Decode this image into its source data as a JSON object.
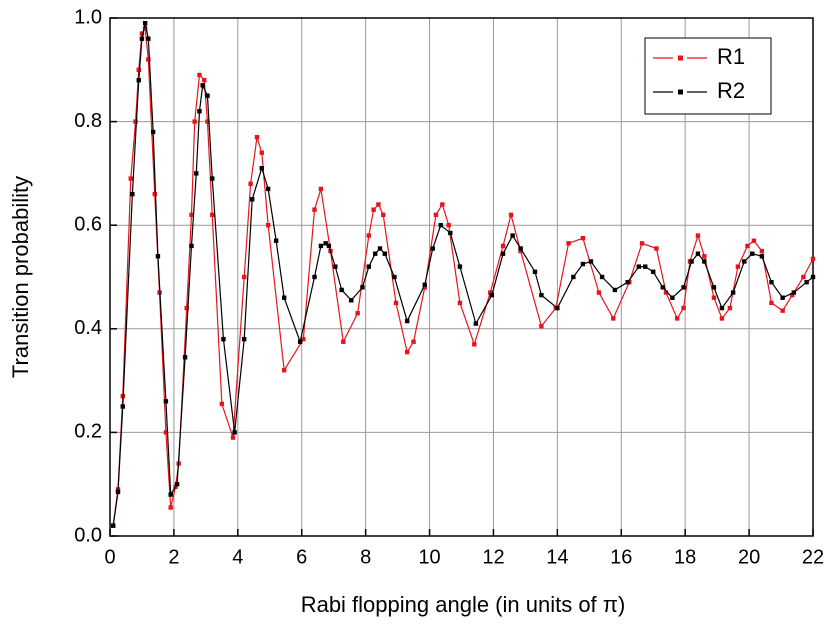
{
  "chart_data": {
    "type": "line",
    "x_label": "Rabi flopping angle (in units of π)",
    "y_label": "Transition probability",
    "xlim": [
      0,
      22
    ],
    "xticks": [
      0,
      2,
      4,
      6,
      8,
      10,
      12,
      14,
      16,
      18,
      20,
      22
    ],
    "ylim": [
      0,
      1
    ],
    "yticks": [
      {
        "value": 0,
        "label": "0.0"
      },
      0.2,
      0.4,
      0.6,
      0.8,
      {
        "value": 1,
        "label": "1.0"
      }
    ],
    "grid": true,
    "legend": "top-right",
    "series": [
      {
        "name": "R1",
        "color": "#e8141c",
        "x": [
          0.1,
          0.25,
          0.4,
          0.65,
          0.8,
          0.9,
          1.0,
          1.1,
          1.2,
          1.4,
          1.55,
          1.75,
          1.9,
          2.05,
          2.15,
          2.4,
          2.55,
          2.65,
          2.8,
          2.95,
          3.05,
          3.2,
          3.5,
          3.85,
          4.2,
          4.4,
          4.6,
          4.75,
          4.95,
          5.45,
          6.05,
          6.4,
          6.6,
          6.9,
          7.3,
          7.75,
          8.1,
          8.25,
          8.4,
          8.55,
          8.95,
          9.3,
          9.5,
          9.85,
          10.2,
          10.4,
          10.6,
          10.95,
          11.4,
          11.9,
          12.3,
          12.55,
          12.85,
          13.5,
          13.95,
          14.35,
          14.8,
          15.3,
          15.75,
          16.25,
          16.65,
          17.1,
          17.4,
          17.75,
          17.95,
          18.15,
          18.4,
          18.6,
          18.9,
          19.15,
          19.4,
          19.65,
          19.95,
          20.15,
          20.4,
          20.7,
          21.05,
          21.35,
          21.7,
          22
        ],
        "values": [
          0.02,
          0.09,
          0.27,
          0.69,
          0.8,
          0.9,
          0.97,
          0.98,
          0.92,
          0.66,
          0.47,
          0.2,
          0.055,
          0.095,
          0.14,
          0.44,
          0.62,
          0.8,
          0.89,
          0.88,
          0.8,
          0.62,
          0.255,
          0.19,
          0.5,
          0.68,
          0.77,
          0.74,
          0.6,
          0.32,
          0.38,
          0.63,
          0.67,
          0.55,
          0.375,
          0.43,
          0.58,
          0.63,
          0.64,
          0.62,
          0.45,
          0.355,
          0.375,
          0.48,
          0.62,
          0.64,
          0.6,
          0.45,
          0.37,
          0.47,
          0.56,
          0.62,
          0.55,
          0.405,
          0.44,
          0.565,
          0.575,
          0.47,
          0.42,
          0.49,
          0.565,
          0.555,
          0.47,
          0.42,
          0.44,
          0.53,
          0.58,
          0.54,
          0.46,
          0.42,
          0.44,
          0.52,
          0.56,
          0.57,
          0.55,
          0.45,
          0.435,
          0.465,
          0.5,
          0.535
        ]
      },
      {
        "name": "R2",
        "color": "#000000",
        "x": [
          0.1,
          0.25,
          0.4,
          0.7,
          0.9,
          1.0,
          1.1,
          1.2,
          1.35,
          1.5,
          1.75,
          1.9,
          2.1,
          2.35,
          2.55,
          2.7,
          2.8,
          2.9,
          3.05,
          3.2,
          3.55,
          3.9,
          4.2,
          4.45,
          4.75,
          4.95,
          5.2,
          5.45,
          5.95,
          6.4,
          6.6,
          6.75,
          6.85,
          7.05,
          7.25,
          7.55,
          7.9,
          8.1,
          8.3,
          8.45,
          8.6,
          8.9,
          9.3,
          9.85,
          10.1,
          10.35,
          10.65,
          10.95,
          11.45,
          11.95,
          12.3,
          12.6,
          12.85,
          13.3,
          13.5,
          14.0,
          14.5,
          14.8,
          15.05,
          15.4,
          15.8,
          16.2,
          16.55,
          16.75,
          17.0,
          17.3,
          17.6,
          17.95,
          18.2,
          18.4,
          18.6,
          18.9,
          19.15,
          19.5,
          19.85,
          20.1,
          20.4,
          20.7,
          21.05,
          21.4,
          21.8,
          22
        ],
        "values": [
          0.02,
          0.085,
          0.25,
          0.66,
          0.88,
          0.96,
          0.99,
          0.96,
          0.78,
          0.54,
          0.26,
          0.08,
          0.1,
          0.345,
          0.56,
          0.7,
          0.82,
          0.87,
          0.85,
          0.69,
          0.38,
          0.2,
          0.38,
          0.65,
          0.71,
          0.67,
          0.57,
          0.46,
          0.375,
          0.5,
          0.56,
          0.565,
          0.56,
          0.52,
          0.475,
          0.455,
          0.48,
          0.52,
          0.545,
          0.555,
          0.545,
          0.5,
          0.415,
          0.485,
          0.555,
          0.6,
          0.585,
          0.52,
          0.41,
          0.465,
          0.545,
          0.58,
          0.555,
          0.51,
          0.465,
          0.44,
          0.5,
          0.525,
          0.53,
          0.5,
          0.475,
          0.49,
          0.52,
          0.52,
          0.51,
          0.48,
          0.46,
          0.48,
          0.53,
          0.545,
          0.53,
          0.48,
          0.44,
          0.47,
          0.53,
          0.545,
          0.54,
          0.49,
          0.46,
          0.47,
          0.49,
          0.5
        ]
      }
    ]
  }
}
